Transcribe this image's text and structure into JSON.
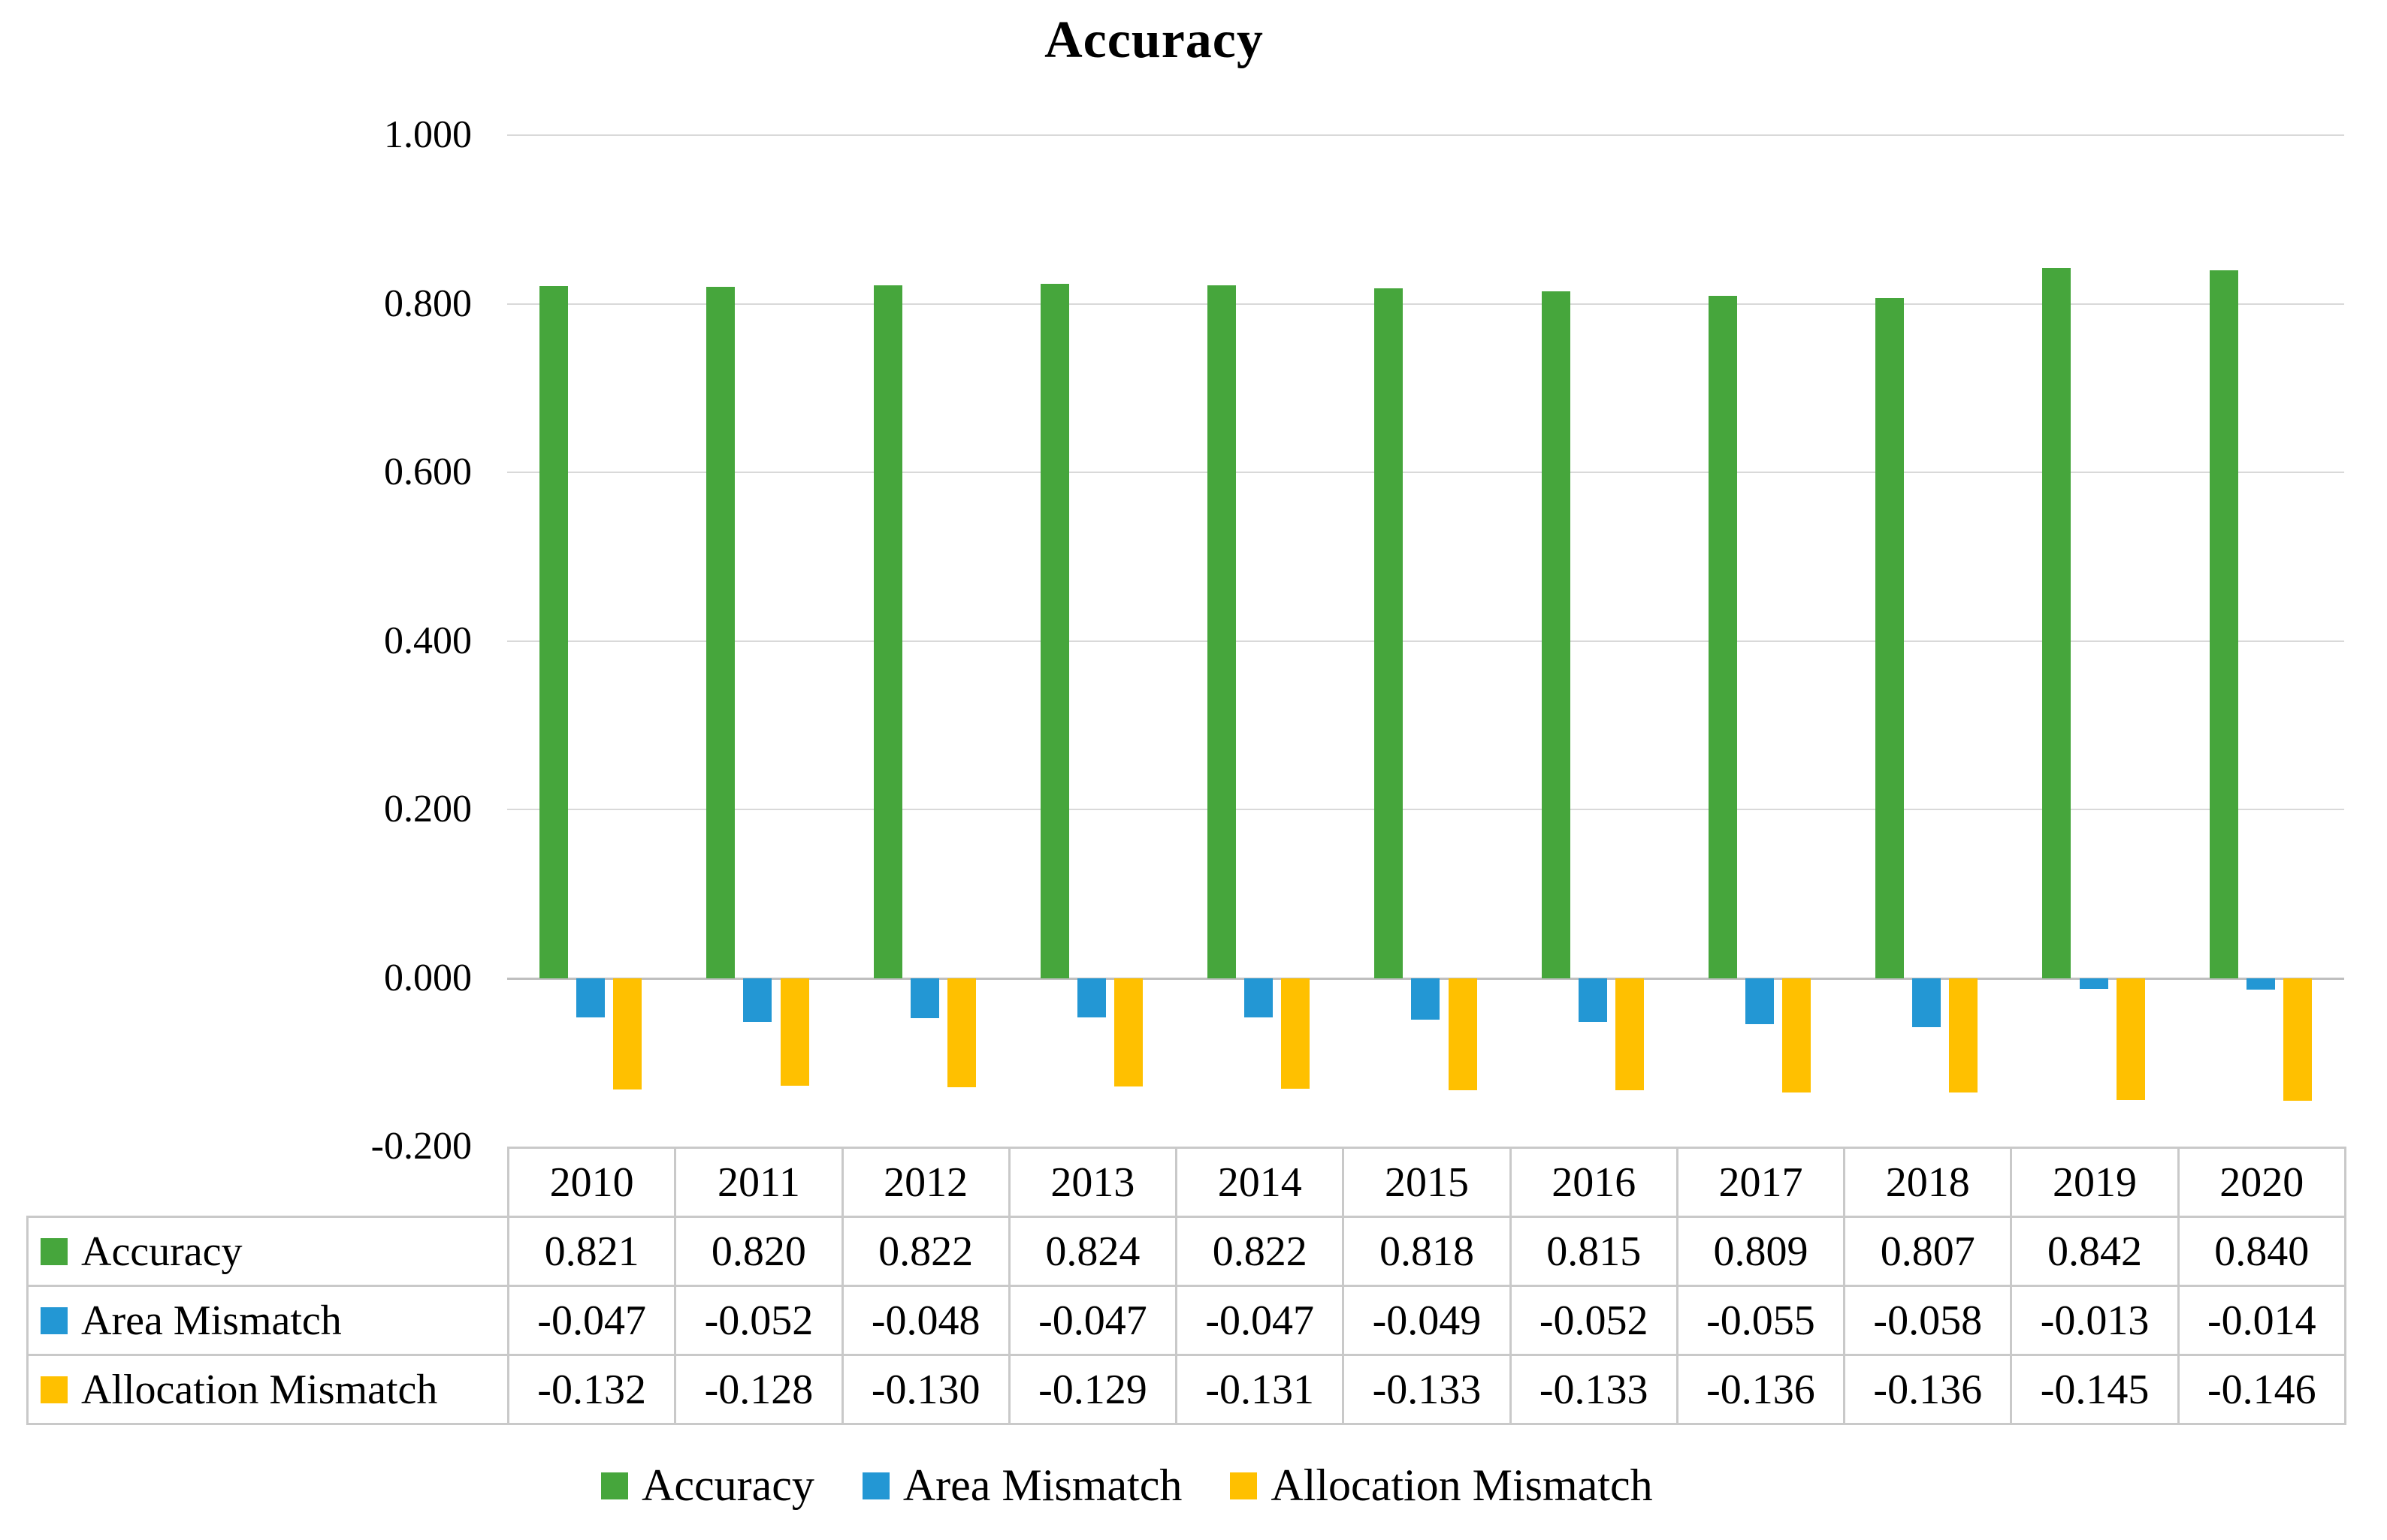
{
  "chart_data": {
    "type": "bar",
    "title": "Accuracy",
    "categories": [
      "2010",
      "2011",
      "2012",
      "2013",
      "2014",
      "2015",
      "2016",
      "2017",
      "2018",
      "2019",
      "2020"
    ],
    "series": [
      {
        "name": "Accuracy",
        "color": "#46a63c",
        "values": [
          0.821,
          0.82,
          0.822,
          0.824,
          0.822,
          0.818,
          0.815,
          0.809,
          0.807,
          0.842,
          0.84
        ]
      },
      {
        "name": "Area Mismatch",
        "color": "#2397d4",
        "values": [
          -0.047,
          -0.052,
          -0.048,
          -0.047,
          -0.047,
          -0.049,
          -0.052,
          -0.055,
          -0.058,
          -0.013,
          -0.014
        ]
      },
      {
        "name": "Allocation Mismatch",
        "color": "#ffc000",
        "values": [
          -0.132,
          -0.128,
          -0.13,
          -0.129,
          -0.131,
          -0.133,
          -0.133,
          -0.136,
          -0.136,
          -0.145,
          -0.146
        ]
      }
    ],
    "xlabel": "",
    "ylabel": "",
    "ylim": [
      -0.2,
      1.0
    ],
    "yticks": [
      1.0,
      0.8,
      0.6,
      0.4,
      0.2,
      0.0,
      -0.2
    ],
    "tick_decimals": 3,
    "value_decimals": 3,
    "grid": "horizontal",
    "gridline_color": "#d9d9d9",
    "zero_line_color": "#bfbfbf",
    "table_border_color": "#c9c9c9",
    "legend_position": "bottom",
    "data_table_shown": true
  }
}
